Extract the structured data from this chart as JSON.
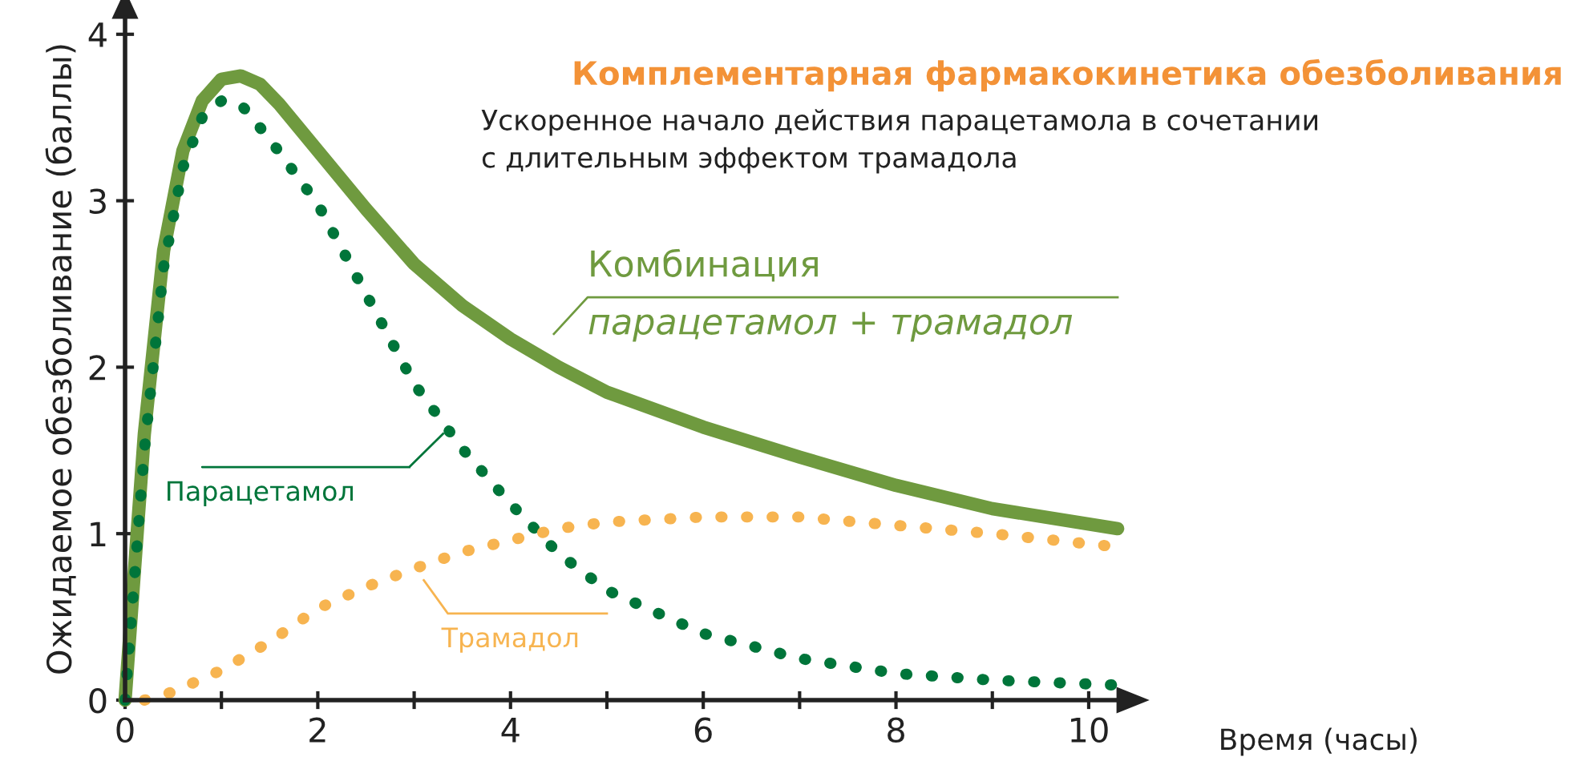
{
  "chart_data": {
    "type": "line",
    "title": "Комплементарная фармакокинетика обезболивания",
    "subtitle": "Ускоренное начало действия парацетамола в сочетании\nс длительным эффектом трамадола",
    "xlabel": "Время (часы)",
    "ylabel": "Ожидаемое обезболивание (баллы)",
    "xlim": [
      0,
      10.3
    ],
    "ylim": [
      0,
      4.1
    ],
    "xticks": [
      0,
      {
        "value": 1,
        "label": null
      },
      2,
      {
        "value": 3,
        "label": null
      },
      4,
      {
        "value": 5,
        "label": null
      },
      6,
      {
        "value": 7,
        "label": null
      },
      8,
      {
        "value": 9,
        "label": null
      },
      10
    ],
    "yticks": [
      0,
      1,
      2,
      3,
      4
    ],
    "grid": false,
    "legend": false,
    "marker": "none",
    "annotations": [
      "парацетамол + трамадол"
    ],
    "series": [
      {
        "name": "Комбинация",
        "color": "#6f9a3f",
        "line_style": "solid",
        "x": [
          0,
          0.2,
          0.4,
          0.6,
          0.8,
          1.0,
          1.2,
          1.4,
          1.6,
          2.0,
          2.5,
          3.0,
          3.5,
          4.0,
          4.5,
          5.0,
          6.0,
          7.0,
          8.0,
          9.0,
          10.3
        ],
        "values": [
          0,
          1.6,
          2.7,
          3.3,
          3.6,
          3.73,
          3.75,
          3.7,
          3.58,
          3.3,
          2.95,
          2.62,
          2.37,
          2.17,
          2.0,
          1.85,
          1.64,
          1.46,
          1.29,
          1.15,
          1.03
        ]
      },
      {
        "name": "Парацетамол",
        "color": "#00753a",
        "line_style": "dotted",
        "x": [
          0,
          0.2,
          0.4,
          0.6,
          0.8,
          1.0,
          1.2,
          1.5,
          2.0,
          2.5,
          3.0,
          3.5,
          4.0,
          4.5,
          5.0,
          6.0,
          7.0,
          8.0,
          9.0,
          10.3
        ],
        "values": [
          0,
          1.5,
          2.6,
          3.2,
          3.5,
          3.6,
          3.58,
          3.37,
          2.98,
          2.44,
          1.9,
          1.51,
          1.18,
          0.88,
          0.66,
          0.4,
          0.25,
          0.16,
          0.12,
          0.09
        ]
      },
      {
        "name": "Трамадол",
        "color": "#f7b450",
        "line_style": "dotted",
        "x": [
          0.2,
          0.5,
          1.0,
          1.5,
          2.0,
          2.5,
          3.0,
          3.5,
          4.0,
          4.5,
          5.0,
          6.0,
          7.0,
          8.0,
          9.0,
          10.3
        ],
        "values": [
          0,
          0.05,
          0.18,
          0.35,
          0.55,
          0.68,
          0.79,
          0.89,
          0.96,
          1.03,
          1.07,
          1.1,
          1.1,
          1.05,
          1.0,
          0.92
        ]
      }
    ]
  }
}
